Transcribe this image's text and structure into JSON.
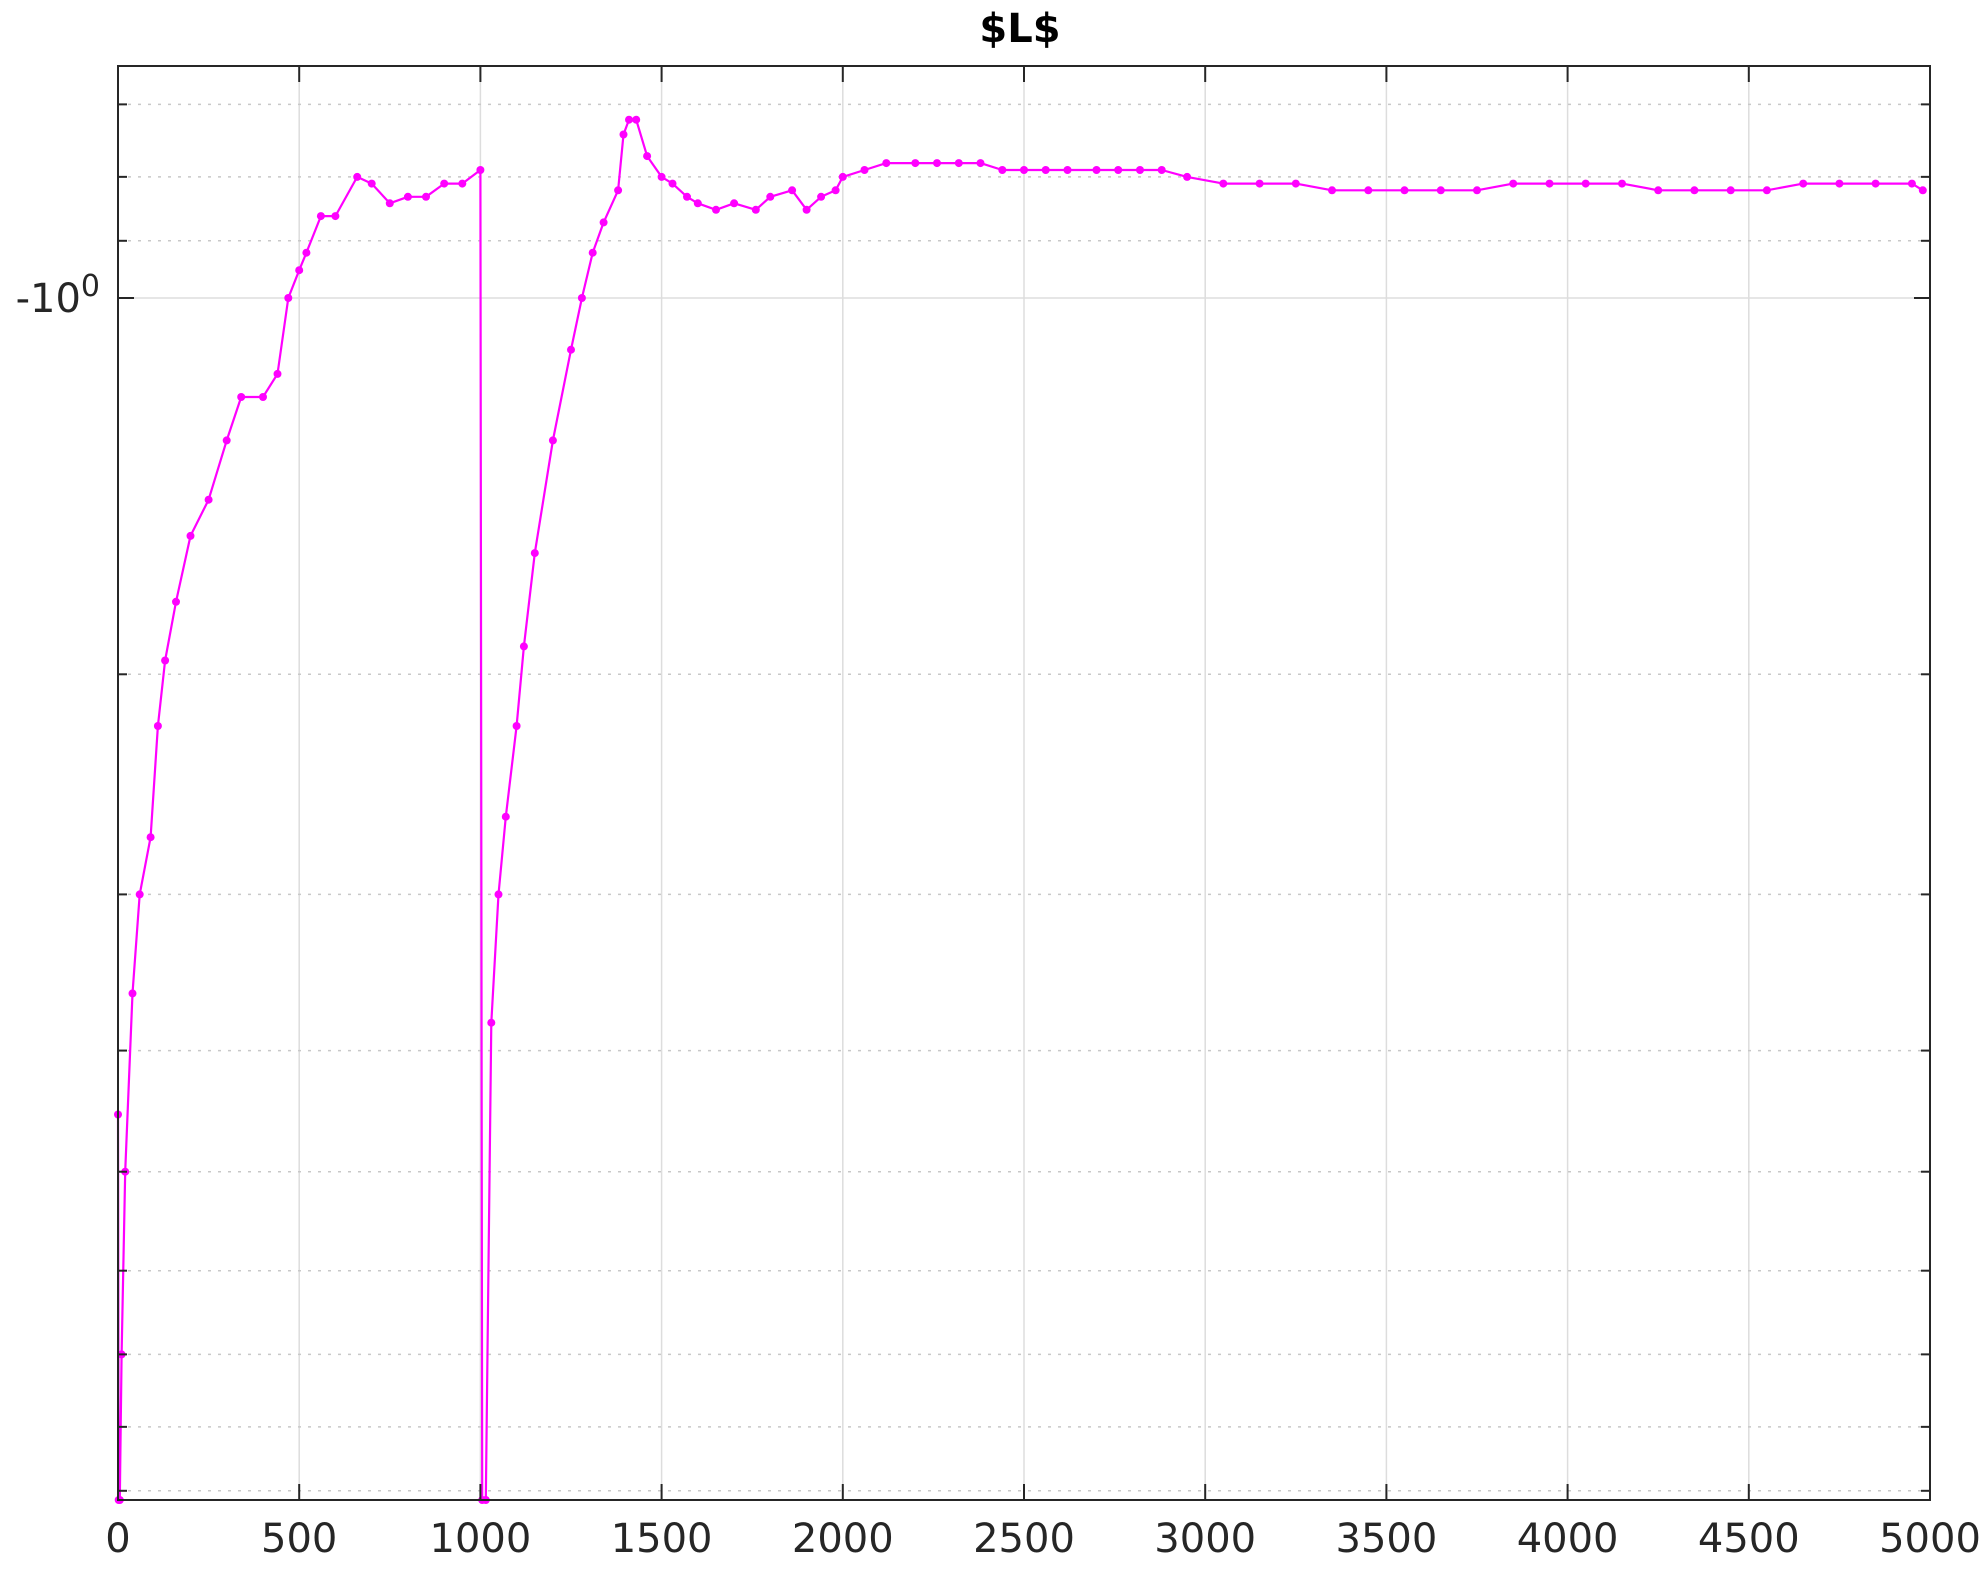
{
  "chart_data": {
    "type": "line",
    "title": "$L$",
    "xlabel": "",
    "ylabel": "",
    "xlim": [
      0,
      5000
    ],
    "x_ticks": [
      0,
      500,
      1000,
      1500,
      2000,
      2500,
      3000,
      3500,
      4000,
      4500,
      5000
    ],
    "y_scale": "log (negative values)",
    "y_tick_label": {
      "base": "-10",
      "exponent": "0"
    },
    "grid": true,
    "legend": "none",
    "line_color": "#ff00ff",
    "marker": "point",
    "series": [
      {
        "points": [
          [
            0,
            -4.5
          ],
          [
            2,
            -14.0
          ],
          [
            5,
            -10.0
          ],
          [
            10,
            -7.0
          ],
          [
            20,
            -5.0
          ],
          [
            40,
            -3.6
          ],
          [
            60,
            -3.0
          ],
          [
            90,
            -2.7
          ],
          [
            110,
            -2.2
          ],
          [
            130,
            -1.95
          ],
          [
            160,
            -1.75
          ],
          [
            200,
            -1.55
          ],
          [
            250,
            -1.45
          ],
          [
            300,
            -1.3
          ],
          [
            340,
            -1.2
          ],
          [
            400,
            -1.2
          ],
          [
            440,
            -1.15
          ],
          [
            470,
            -1.0
          ],
          [
            500,
            -0.95
          ],
          [
            520,
            -0.92
          ],
          [
            560,
            -0.86
          ],
          [
            600,
            -0.86
          ],
          [
            660,
            -0.8
          ],
          [
            700,
            -0.81
          ],
          [
            750,
            -0.84
          ],
          [
            800,
            -0.83
          ],
          [
            850,
            -0.83
          ],
          [
            900,
            -0.81
          ],
          [
            950,
            -0.81
          ],
          [
            1000,
            -0.79
          ],
          [
            1005,
            -13.0
          ],
          [
            1015,
            -10.0
          ],
          [
            1030,
            -3.8
          ],
          [
            1050,
            -3.0
          ],
          [
            1070,
            -2.6
          ],
          [
            1100,
            -2.2
          ],
          [
            1120,
            -1.9
          ],
          [
            1150,
            -1.6
          ],
          [
            1200,
            -1.3
          ],
          [
            1250,
            -1.1
          ],
          [
            1280,
            -1.0
          ],
          [
            1310,
            -0.92
          ],
          [
            1340,
            -0.87
          ],
          [
            1380,
            -0.82
          ],
          [
            1395,
            -0.74
          ],
          [
            1410,
            -0.72
          ],
          [
            1430,
            -0.72
          ],
          [
            1460,
            -0.77
          ],
          [
            1500,
            -0.8
          ],
          [
            1530,
            -0.81
          ],
          [
            1570,
            -0.83
          ],
          [
            1600,
            -0.84
          ],
          [
            1650,
            -0.85
          ],
          [
            1700,
            -0.84
          ],
          [
            1760,
            -0.85
          ],
          [
            1800,
            -0.83
          ],
          [
            1860,
            -0.82
          ],
          [
            1900,
            -0.85
          ],
          [
            1940,
            -0.83
          ],
          [
            1980,
            -0.82
          ],
          [
            2000,
            -0.8
          ],
          [
            2060,
            -0.79
          ],
          [
            2120,
            -0.78
          ],
          [
            2200,
            -0.78
          ],
          [
            2260,
            -0.78
          ],
          [
            2320,
            -0.78
          ],
          [
            2380,
            -0.78
          ],
          [
            2440,
            -0.79
          ],
          [
            2500,
            -0.79
          ],
          [
            2560,
            -0.79
          ],
          [
            2620,
            -0.79
          ],
          [
            2700,
            -0.79
          ],
          [
            2760,
            -0.79
          ],
          [
            2820,
            -0.79
          ],
          [
            2880,
            -0.79
          ],
          [
            2950,
            -0.8
          ],
          [
            3050,
            -0.81
          ],
          [
            3150,
            -0.81
          ],
          [
            3250,
            -0.81
          ],
          [
            3350,
            -0.82
          ],
          [
            3450,
            -0.82
          ],
          [
            3550,
            -0.82
          ],
          [
            3650,
            -0.82
          ],
          [
            3750,
            -0.82
          ],
          [
            3850,
            -0.81
          ],
          [
            3950,
            -0.81
          ],
          [
            4050,
            -0.81
          ],
          [
            4150,
            -0.81
          ],
          [
            4250,
            -0.82
          ],
          [
            4350,
            -0.82
          ],
          [
            4450,
            -0.82
          ],
          [
            4550,
            -0.82
          ],
          [
            4650,
            -0.81
          ],
          [
            4750,
            -0.81
          ],
          [
            4850,
            -0.81
          ],
          [
            4950,
            -0.81
          ],
          [
            4980,
            -0.82
          ]
        ]
      }
    ]
  }
}
